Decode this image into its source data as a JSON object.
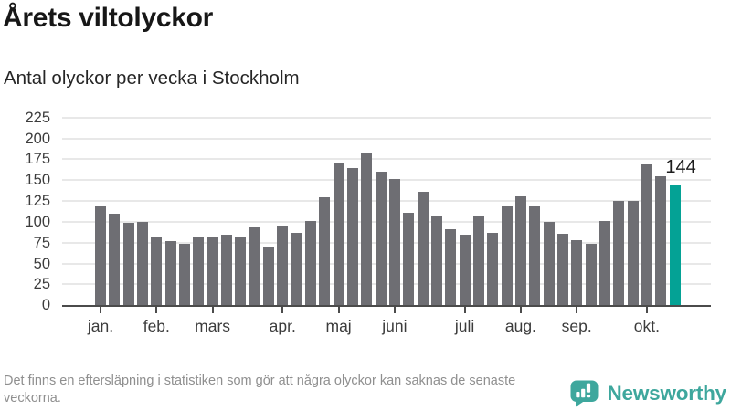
{
  "title": "Årets viltolyckor",
  "subtitle": "Antal olyckor per vecka i Stockholm",
  "footer": {
    "note": "Det finns en eftersläpning i statistiken som gör att några olyckor kan saknas de senaste veckorna."
  },
  "branding": {
    "name": "Newsworthy",
    "color": "#3ea79d"
  },
  "colors": {
    "bar": "#6e6e73",
    "highlight": "#04a295",
    "grid": "#e8e8e8",
    "axis": "#4b4b4b",
    "text": "#3c3c3c",
    "muted": "#8f8f8f"
  },
  "chart_data": {
    "type": "bar",
    "title": "Årets viltolyckor",
    "subtitle": "Antal olyckor per vecka i Stockholm",
    "xlabel": "",
    "ylabel": "",
    "x_unit": "vecka",
    "x": [
      1,
      2,
      3,
      4,
      5,
      6,
      7,
      8,
      9,
      10,
      11,
      12,
      13,
      14,
      15,
      16,
      17,
      18,
      19,
      20,
      21,
      22,
      23,
      24,
      25,
      26,
      27,
      28,
      29,
      30,
      31,
      32,
      33,
      34,
      35,
      36,
      37,
      38,
      39,
      40,
      41,
      42
    ],
    "values": [
      119,
      110,
      99,
      100,
      82,
      77,
      74,
      81,
      82,
      85,
      81,
      93,
      70,
      96,
      87,
      101,
      129,
      171,
      165,
      182,
      160,
      151,
      111,
      136,
      108,
      91,
      85,
      106,
      87,
      119,
      130,
      118,
      100,
      86,
      78,
      74,
      101,
      125,
      125,
      169,
      155,
      144
    ],
    "highlight_index": 41,
    "annotation": {
      "text": "144",
      "week": 42
    },
    "y_ticks": [
      0,
      25,
      50,
      75,
      100,
      125,
      150,
      175,
      200,
      225
    ],
    "ylim": [
      0,
      225
    ],
    "x_tick_labels": [
      "jan.",
      "feb.",
      "mars",
      "apr.",
      "maj",
      "juni",
      "juli",
      "aug.",
      "sep.",
      "okt."
    ],
    "x_tick_weeks": [
      1,
      5,
      9,
      14,
      18,
      22,
      27,
      31,
      35,
      40
    ],
    "grid": true,
    "legend": false
  }
}
